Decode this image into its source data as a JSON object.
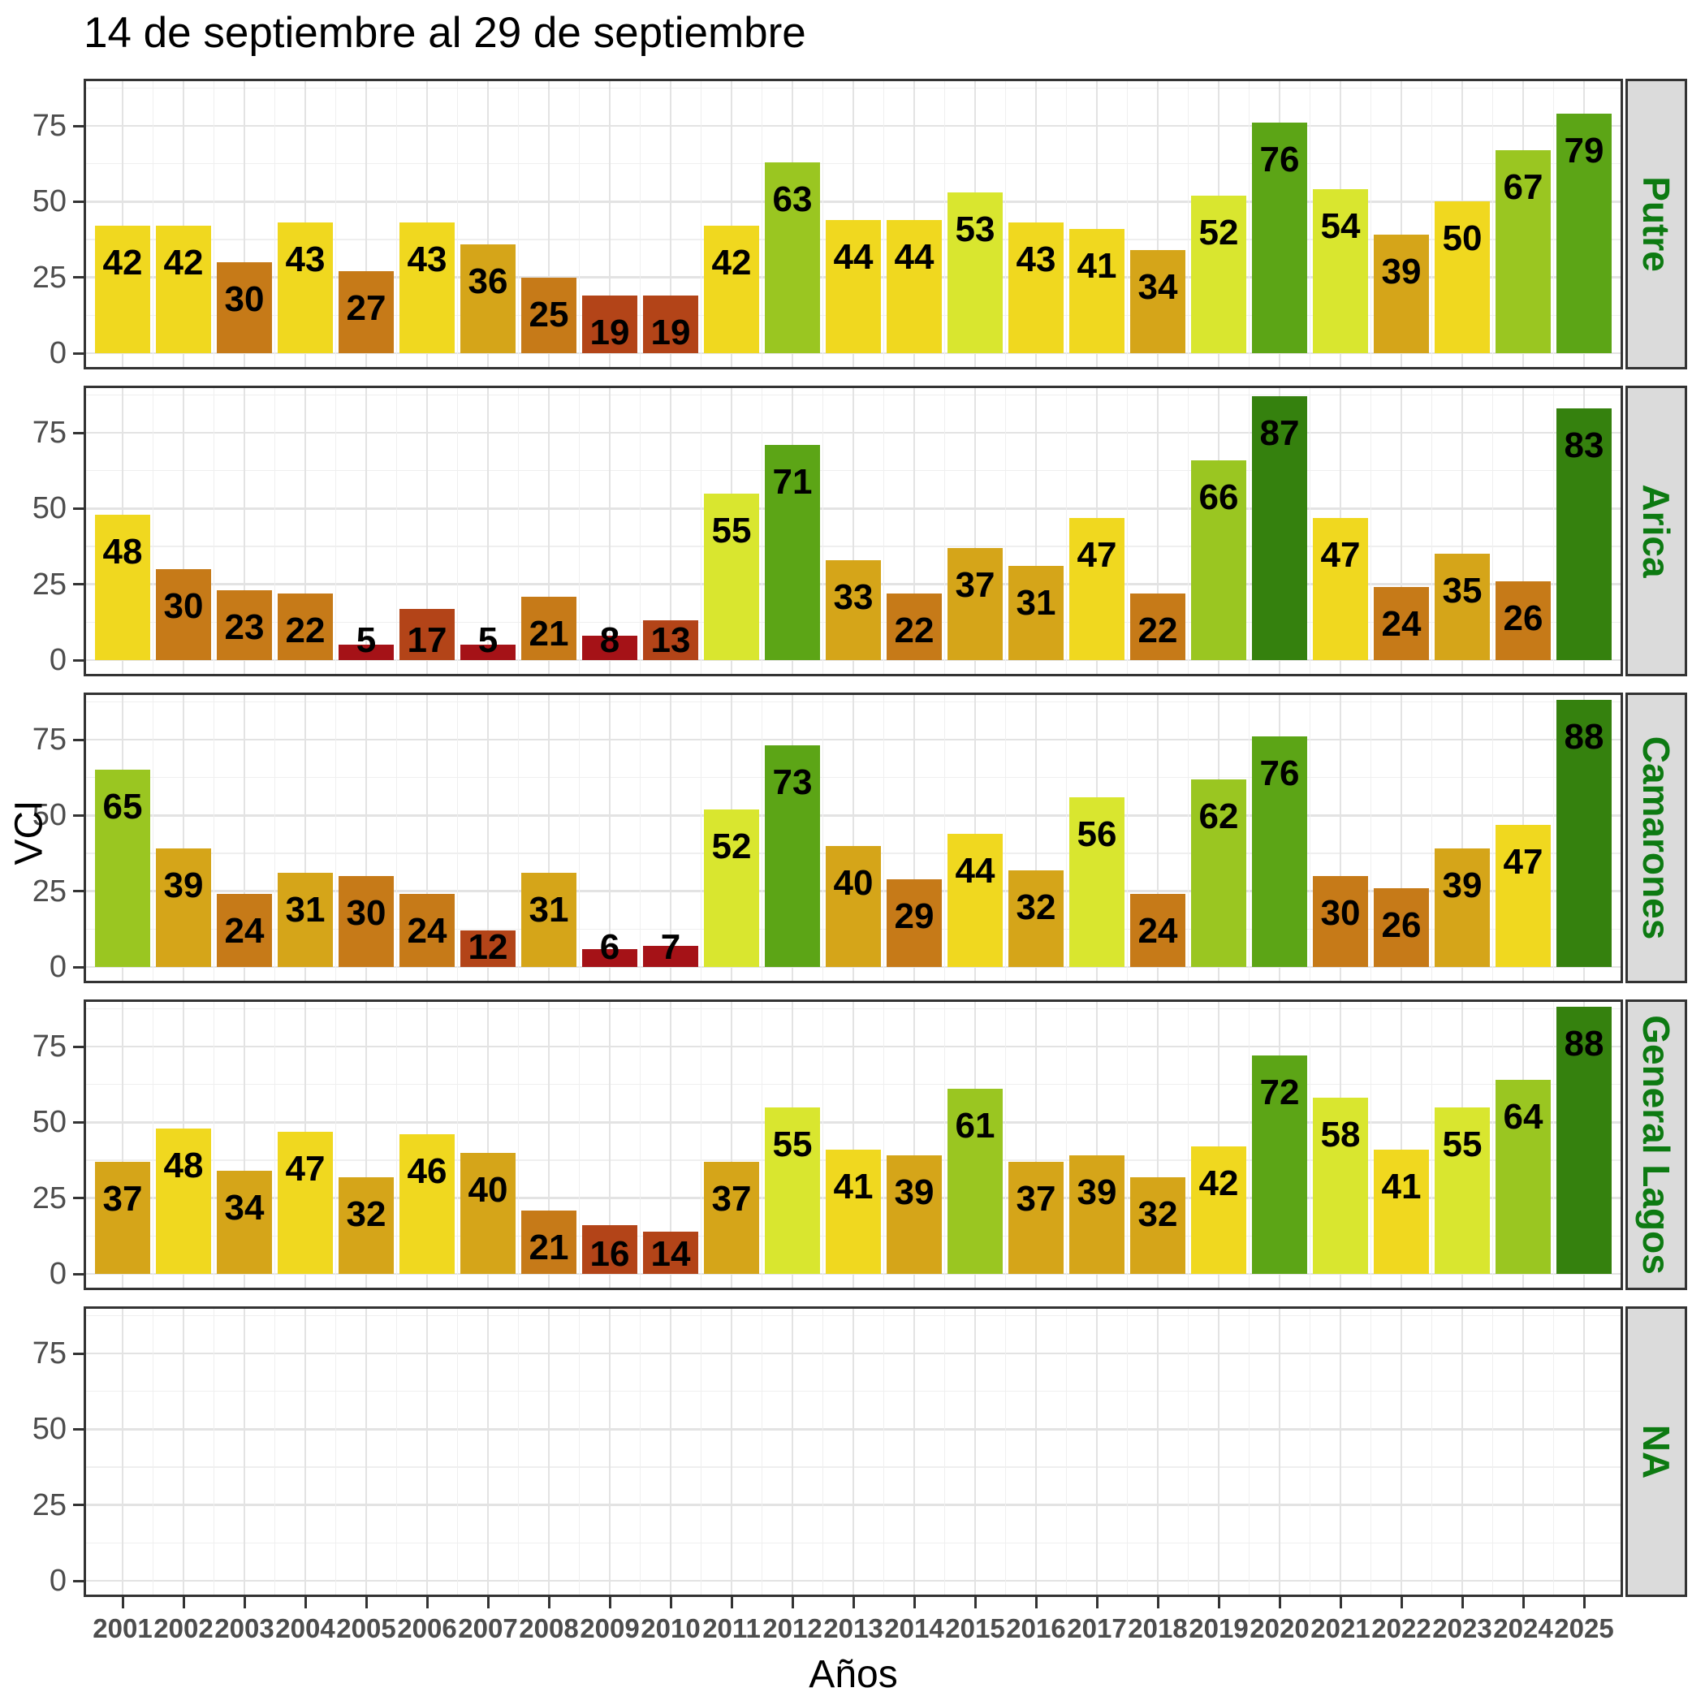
{
  "title": "14 de septiembre al 29 de septiembre",
  "x_axis": {
    "label": "Años",
    "years": [
      "2001",
      "2002",
      "2003",
      "2004",
      "2005",
      "2006",
      "2007",
      "2008",
      "2009",
      "2010",
      "2011",
      "2012",
      "2013",
      "2014",
      "2015",
      "2016",
      "2017",
      "2018",
      "2019",
      "2020",
      "2021",
      "2022",
      "2023",
      "2024",
      "2025"
    ]
  },
  "y_axis": {
    "label": "VCI",
    "ticks": [
      "0",
      "25",
      "50",
      "75"
    ]
  },
  "chart_data": {
    "type": "bar",
    "title": "14 de septiembre al 29 de septiembre",
    "xlabel": "Años",
    "ylabel": "VCI",
    "x": [
      2001,
      2002,
      2003,
      2004,
      2005,
      2006,
      2007,
      2008,
      2009,
      2010,
      2011,
      2012,
      2013,
      2014,
      2015,
      2016,
      2017,
      2018,
      2019,
      2020,
      2021,
      2022,
      2023,
      2024,
      2025
    ],
    "facets_stacked_vertically": true,
    "series": [
      {
        "name": "Putre",
        "values": [
          42,
          42,
          30,
          43,
          27,
          43,
          36,
          25,
          19,
          19,
          42,
          63,
          44,
          44,
          53,
          43,
          41,
          34,
          52,
          76,
          54,
          39,
          50,
          67,
          79
        ]
      },
      {
        "name": "Arica",
        "values": [
          48,
          30,
          23,
          22,
          5,
          17,
          5,
          21,
          8,
          13,
          55,
          71,
          33,
          22,
          37,
          31,
          47,
          22,
          66,
          87,
          47,
          24,
          35,
          26,
          83
        ]
      },
      {
        "name": "Camarones",
        "values": [
          65,
          39,
          24,
          31,
          30,
          24,
          12,
          31,
          6,
          7,
          52,
          73,
          40,
          29,
          44,
          32,
          56,
          24,
          62,
          76,
          30,
          26,
          39,
          47,
          88
        ]
      },
      {
        "name": "General Lagos",
        "values": [
          37,
          48,
          34,
          47,
          32,
          46,
          40,
          21,
          16,
          14,
          37,
          55,
          41,
          39,
          61,
          37,
          39,
          32,
          42,
          72,
          58,
          41,
          55,
          64,
          88
        ]
      },
      {
        "name": "NA",
        "values": []
      }
    ],
    "ylim": [
      0,
      91
    ],
    "yticks": [
      0,
      25,
      50,
      75
    ],
    "grid": true,
    "bar_value_labels": true,
    "legend": "none",
    "color_scale_bins": [
      {
        "upto": 10,
        "color": "#A51217"
      },
      {
        "upto": 20,
        "color": "#B34418"
      },
      {
        "upto": 30,
        "color": "#C67A18"
      },
      {
        "upto": 40,
        "color": "#D5A519"
      },
      {
        "upto": 50,
        "color": "#F0D81F"
      },
      {
        "upto": 60,
        "color": "#D9E62F"
      },
      {
        "upto": 70,
        "color": "#9AC621"
      },
      {
        "upto": 80,
        "color": "#5CA516"
      },
      {
        "upto": 100,
        "color": "#35810E"
      }
    ],
    "style": {
      "strip_fill": "#DBDBDB",
      "strip_text_color": "#0D7A12",
      "panel_border": "#333333",
      "grid_major": "#E3E3E3",
      "grid_minor": "#EFEFEF",
      "tick_label_color": "#4D4D4D",
      "bar_label_color": "#000000"
    }
  }
}
